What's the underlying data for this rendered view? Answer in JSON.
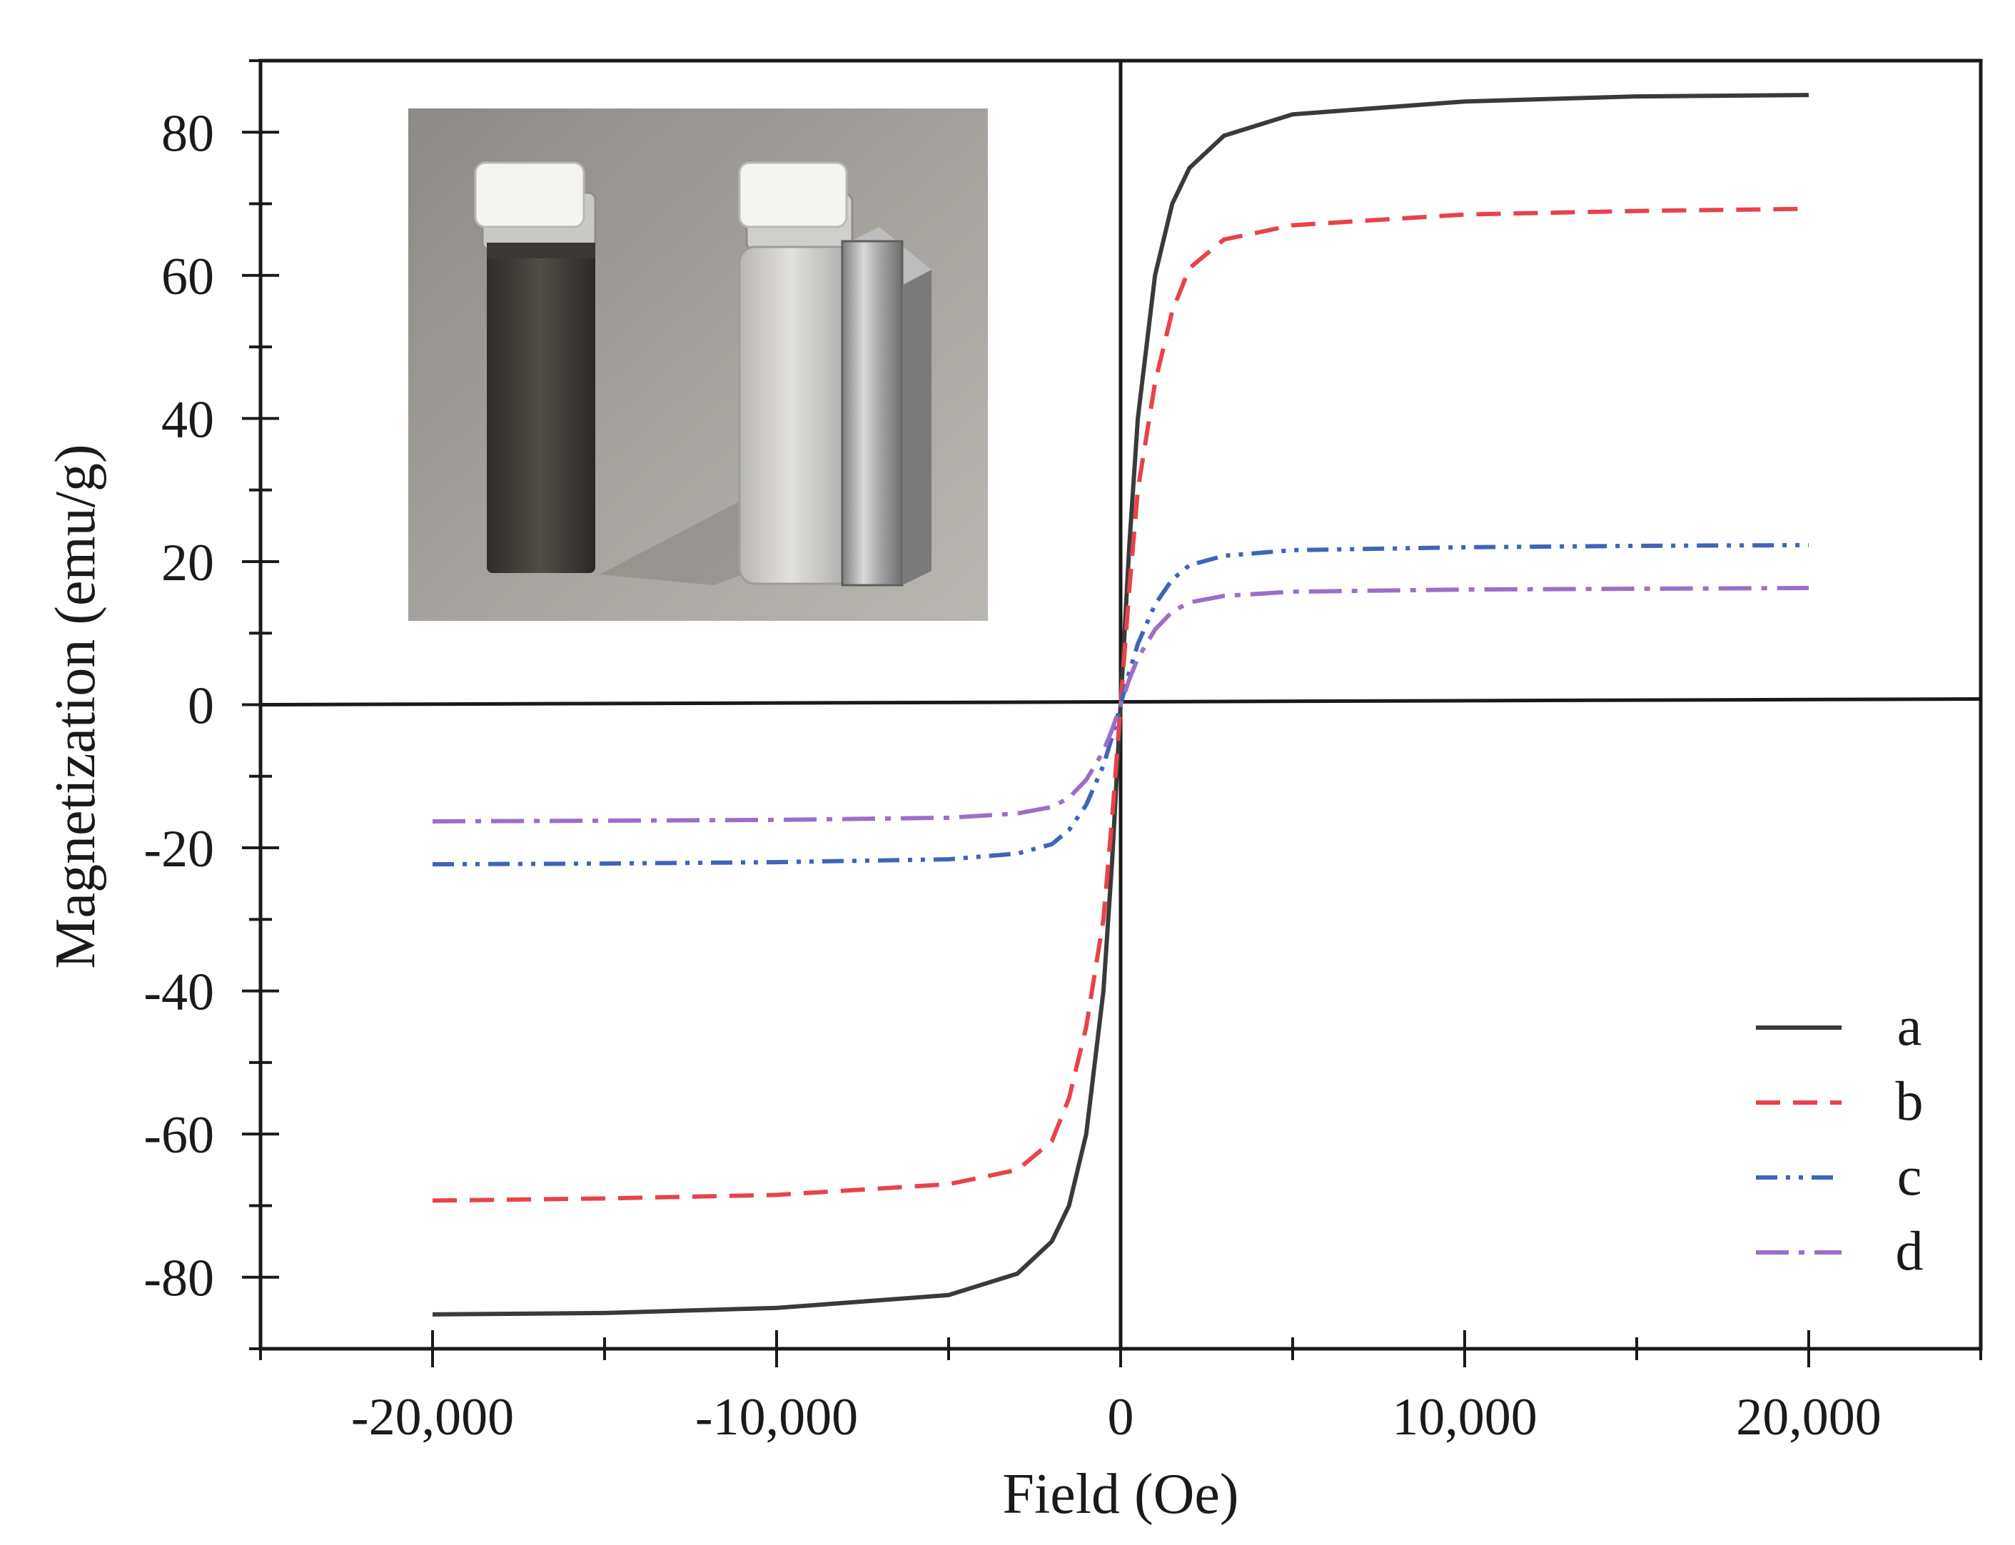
{
  "chart_data": {
    "type": "line",
    "title": "",
    "xlabel": "Field (Oe)",
    "ylabel": "Magnetization (emu/g)",
    "xlim": [
      -25000,
      25000
    ],
    "ylim": [
      -90,
      90
    ],
    "xticks": [
      -20000,
      -10000,
      0,
      10000,
      20000
    ],
    "xtick_labels": [
      "-20,000",
      "-10,000",
      "0",
      "10,000",
      "20,000"
    ],
    "yticks": [
      -80,
      -60,
      -40,
      -20,
      0,
      20,
      40,
      60,
      80
    ],
    "ytick_labels": [
      "-80",
      "-60",
      "-40",
      "-20",
      "0",
      "20",
      "40",
      "60",
      "80"
    ],
    "grid": false,
    "legend_position": "bottom-right",
    "x": [
      -20000,
      -15000,
      -10000,
      -5000,
      -3000,
      -2000,
      -1500,
      -1000,
      -500,
      -250,
      0,
      250,
      500,
      1000,
      1500,
      2000,
      3000,
      5000,
      10000,
      15000,
      20000
    ],
    "series": [
      {
        "name": "a",
        "color": "#3a3a3a",
        "dash": "solid",
        "values": [
          -85.2,
          -85.0,
          -84.3,
          -82.5,
          -79.5,
          -75.0,
          -70.0,
          -60.0,
          -40.0,
          -22.0,
          0,
          22.0,
          40.0,
          60.0,
          70.0,
          75.0,
          79.5,
          82.5,
          84.3,
          85.0,
          85.2
        ]
      },
      {
        "name": "b",
        "color": "#e8424a",
        "dash": "dashed",
        "values": [
          -69.3,
          -69.0,
          -68.5,
          -67.0,
          -65.0,
          -61.0,
          -55.0,
          -45.0,
          -30.0,
          -16.0,
          0,
          16.0,
          30.0,
          45.0,
          55.0,
          61.0,
          65.0,
          67.0,
          68.5,
          69.0,
          69.3
        ]
      },
      {
        "name": "c",
        "color": "#3f64b8",
        "dash": "dash-dot-dot",
        "values": [
          -22.3,
          -22.2,
          -22.0,
          -21.6,
          -20.8,
          -19.5,
          -17.5,
          -14.0,
          -8.5,
          -4.5,
          0,
          4.5,
          8.5,
          14.0,
          17.5,
          19.5,
          20.8,
          21.6,
          22.0,
          22.2,
          22.3
        ]
      },
      {
        "name": "d",
        "color": "#9b6fc8",
        "dash": "dash-dot",
        "values": [
          -16.3,
          -16.2,
          -16.1,
          -15.8,
          -15.2,
          -14.3,
          -13.0,
          -10.5,
          -6.5,
          -3.5,
          0,
          3.5,
          6.5,
          10.5,
          13.0,
          14.3,
          15.2,
          15.8,
          16.1,
          16.2,
          16.3
        ]
      }
    ],
    "inset": {
      "content": "photograph of two glass vials; left vial filled with dark magnetic dispersion, right vial with clear liquid next to a magnet",
      "placement": "top-left"
    }
  }
}
